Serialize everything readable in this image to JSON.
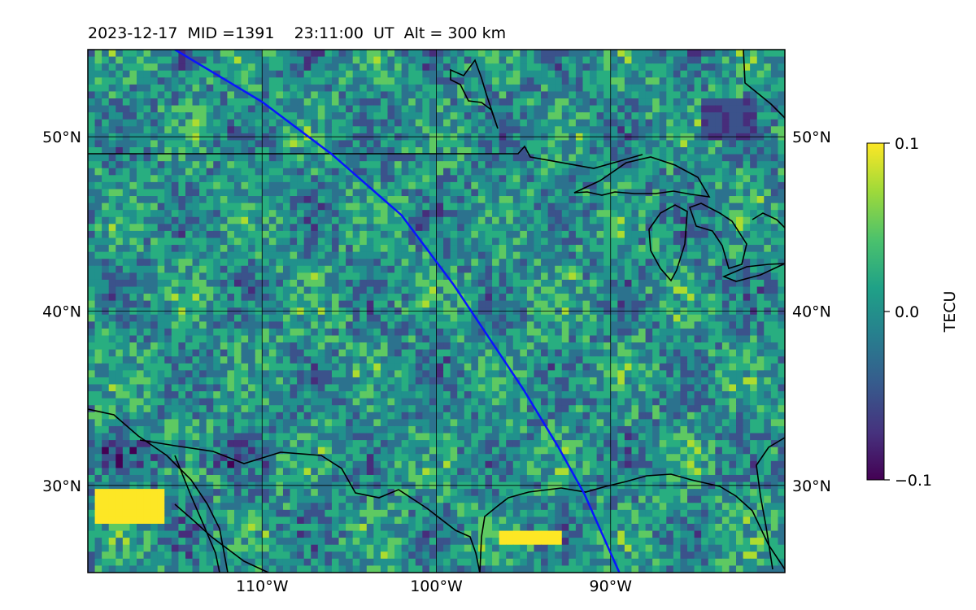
{
  "header": {
    "title": "2023-12-17  MID =1391    23:11:00  UT  Alt = 300 km"
  },
  "map": {
    "extent": {
      "lon_min": -120,
      "lon_max": -80,
      "lat_min": 25,
      "lat_max": 55
    },
    "lon_ticks": [
      {
        "value": -110,
        "label": "110°W"
      },
      {
        "value": -100,
        "label": "100°W"
      },
      {
        "value": -90,
        "label": "90°W"
      }
    ],
    "lat_ticks": [
      {
        "value": 50,
        "label": "50°N"
      },
      {
        "value": 40,
        "label": "40°N"
      },
      {
        "value": 30,
        "label": "30°N"
      }
    ],
    "grid": true,
    "track": {
      "color": "#0a14ff",
      "points": [
        [
          -115,
          55
        ],
        [
          -110,
          52
        ],
        [
          -106,
          49
        ],
        [
          -102,
          45.5
        ],
        [
          -99,
          41.5
        ],
        [
          -97,
          38.5
        ],
        [
          -95,
          35.5
        ],
        [
          -93,
          32.2
        ],
        [
          -91.5,
          29.5
        ],
        [
          -89.5,
          25
        ]
      ]
    }
  },
  "colorbar": {
    "label": "TECU",
    "colormap": "viridis",
    "min": -0.1,
    "max": 0.1,
    "ticks": [
      {
        "value": 0.1,
        "label": "0.1"
      },
      {
        "value": 0.0,
        "label": "0.0"
      },
      {
        "value": -0.1,
        "label": "−0.1"
      }
    ]
  }
}
